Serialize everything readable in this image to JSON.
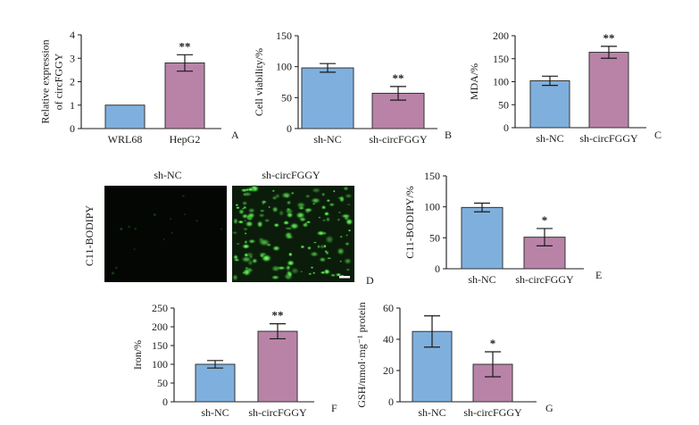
{
  "colors": {
    "blue": "#7fb0dd",
    "purple": "#b983a8",
    "green": "#44c23a"
  },
  "chart_data": [
    {
      "type": "bar",
      "panel": "A",
      "ylabel_lines": [
        "Relative expression",
        "of circFGGY"
      ],
      "ylim": [
        0,
        4
      ],
      "yticks": [
        0,
        1,
        2,
        3,
        4
      ],
      "categories": [
        "WRL68",
        "HepG2"
      ],
      "values": [
        1.0,
        2.8
      ],
      "errors": [
        0,
        0.35
      ],
      "significance": [
        "",
        "**"
      ],
      "colors": [
        "blue",
        "purple"
      ]
    },
    {
      "type": "bar",
      "panel": "B",
      "ylabel_lines": [
        "Cell viability/%"
      ],
      "ylim": [
        0,
        150
      ],
      "yticks": [
        0,
        50,
        100,
        150
      ],
      "categories": [
        "sh-NC",
        "sh-circFGGY"
      ],
      "values": [
        98,
        57
      ],
      "errors": [
        7,
        11
      ],
      "significance": [
        "",
        "**"
      ],
      "colors": [
        "blue",
        "purple"
      ]
    },
    {
      "type": "bar",
      "panel": "C",
      "ylabel_lines": [
        "MDA/%"
      ],
      "ylim": [
        0,
        200
      ],
      "yticks": [
        0,
        50,
        100,
        150,
        200
      ],
      "categories": [
        "sh-NC",
        "sh-circFGGY"
      ],
      "values": [
        102,
        164
      ],
      "errors": [
        10,
        13
      ],
      "significance": [
        "",
        "**"
      ],
      "colors": [
        "blue",
        "purple"
      ]
    },
    {
      "type": "bar",
      "panel": "E",
      "ylabel_lines": [
        "C11-BODIPY/%"
      ],
      "ylim": [
        0,
        150
      ],
      "yticks": [
        0,
        50,
        100,
        150
      ],
      "categories": [
        "sh-NC",
        "sh-circFGGY"
      ],
      "values": [
        99,
        51
      ],
      "errors": [
        7,
        14
      ],
      "significance": [
        "",
        "*"
      ],
      "colors": [
        "blue",
        "purple"
      ]
    },
    {
      "type": "bar",
      "panel": "F",
      "ylabel_lines": [
        "Iron/%"
      ],
      "ylim": [
        0,
        250
      ],
      "yticks": [
        0,
        50,
        100,
        150,
        200,
        250
      ],
      "categories": [
        "sh-NC",
        "sh-circFGGY"
      ],
      "values": [
        100,
        188
      ],
      "errors": [
        10,
        20
      ],
      "significance": [
        "",
        "**"
      ],
      "colors": [
        "blue",
        "purple"
      ]
    },
    {
      "type": "bar",
      "panel": "G",
      "ylabel_lines": [
        "GSH/nmol·mg⁻¹ protein"
      ],
      "ylim": [
        0,
        60
      ],
      "yticks": [
        0,
        20,
        40,
        60
      ],
      "categories": [
        "sh-NC",
        "sh-circFGGY"
      ],
      "values": [
        45,
        24
      ],
      "errors": [
        10,
        8
      ],
      "significance": [
        "",
        "*"
      ],
      "colors": [
        "blue",
        "purple"
      ]
    }
  ],
  "images_panel": {
    "panel": "D",
    "row_label": "C11-BODIPY",
    "columns": [
      "sh-NC",
      "sh-circFGGY"
    ]
  }
}
